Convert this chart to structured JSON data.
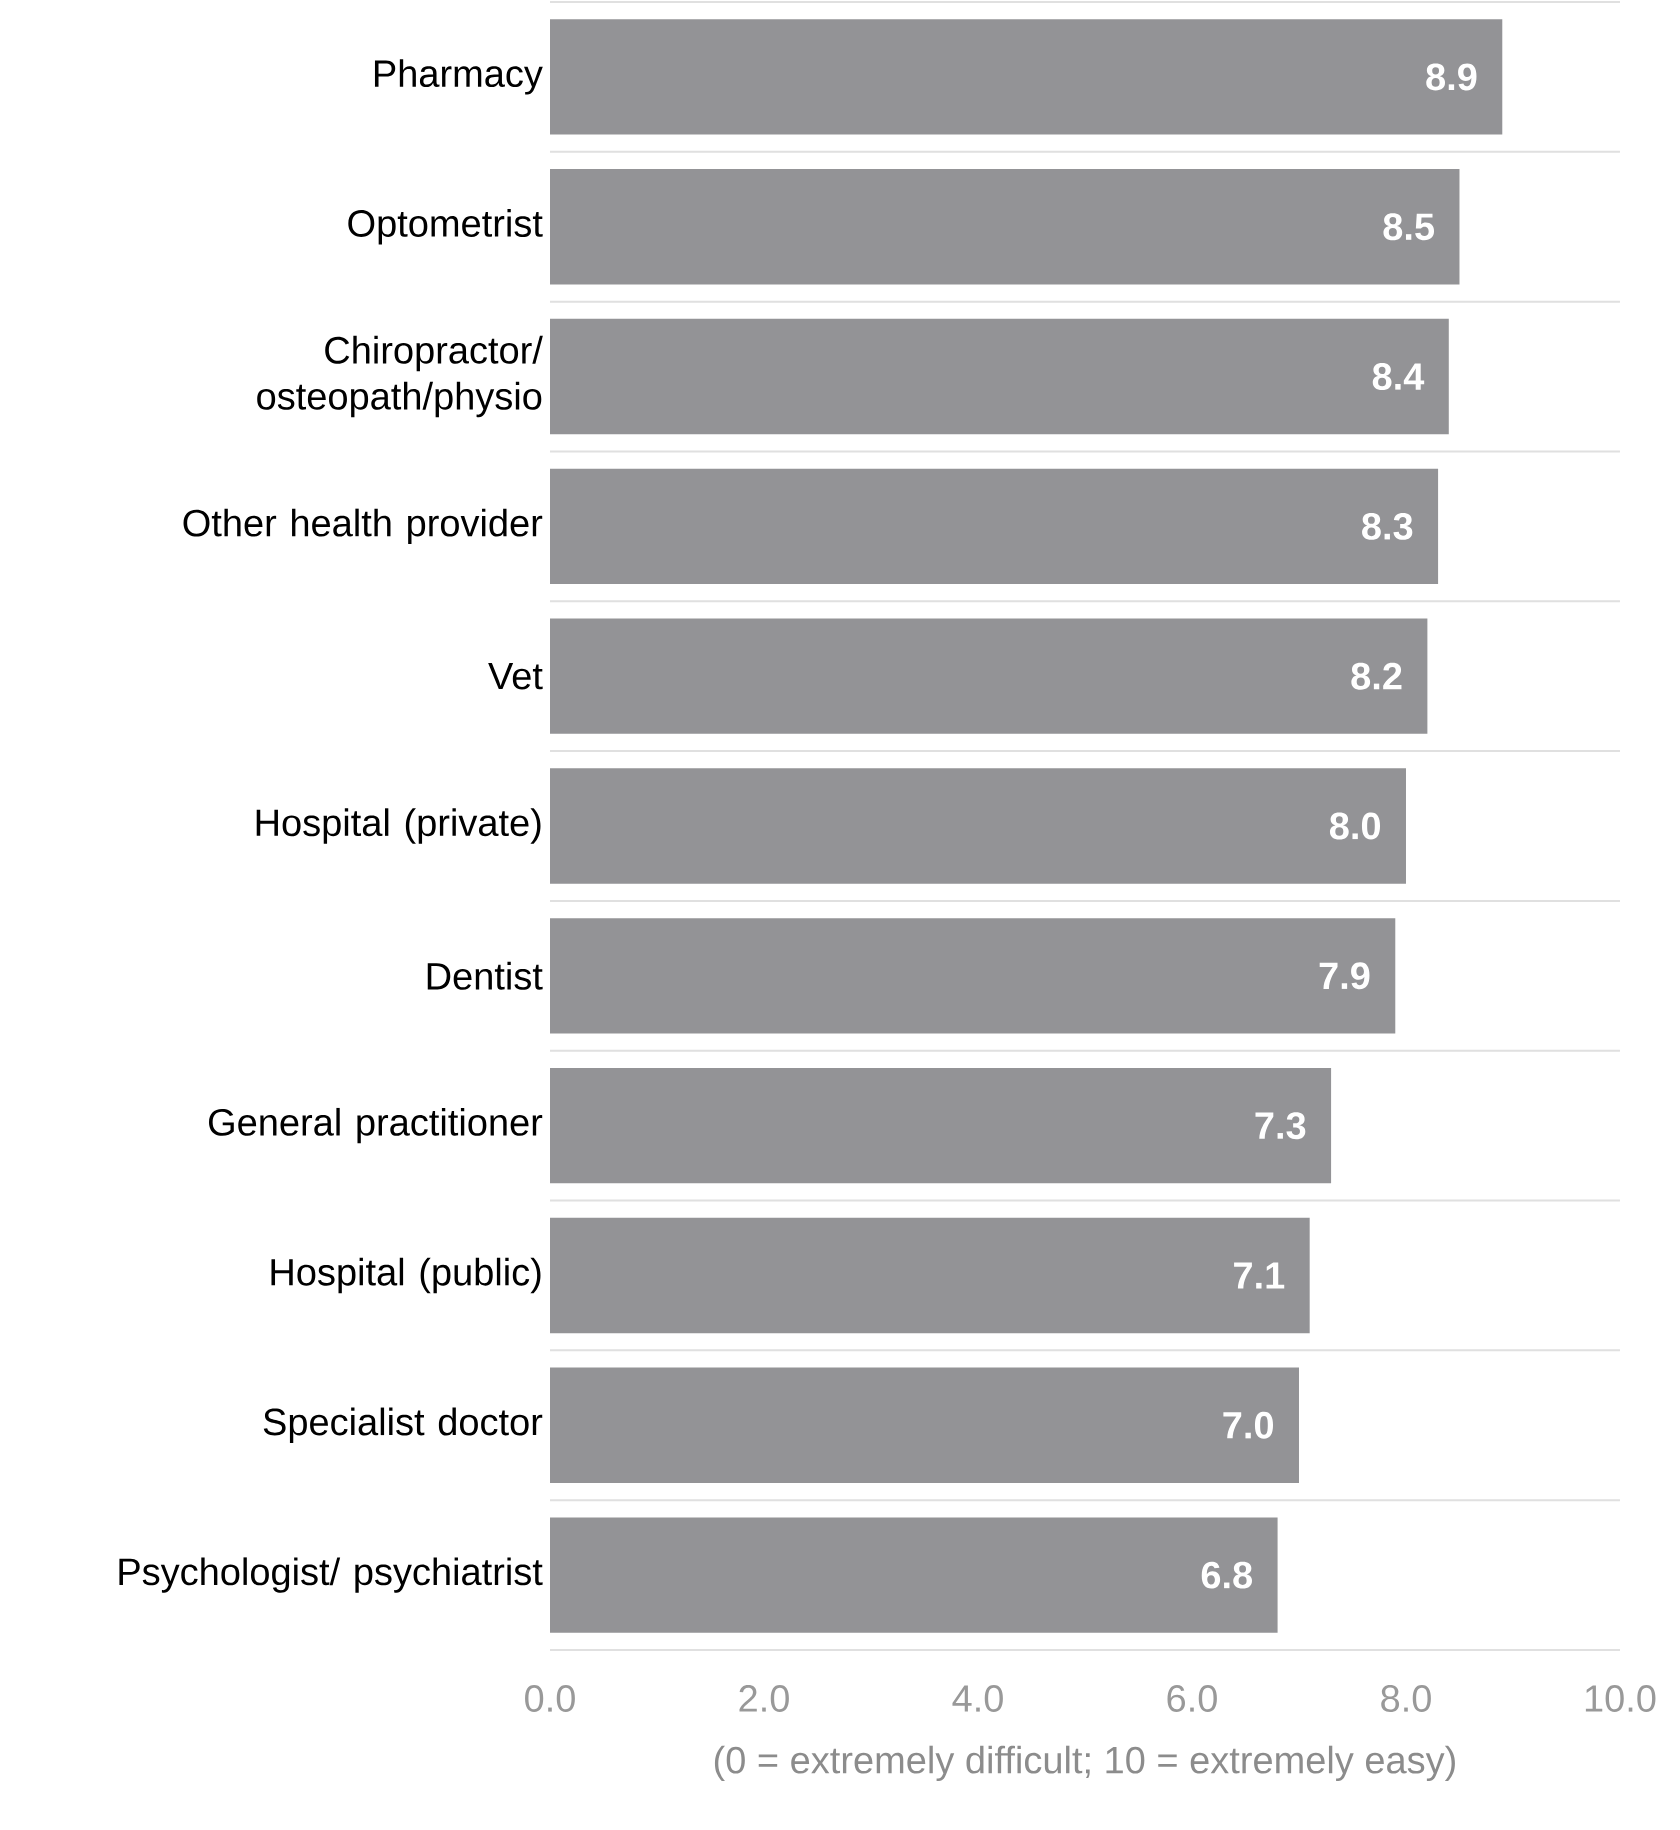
{
  "chart_data": {
    "type": "bar",
    "orientation": "horizontal",
    "categories": [
      "Pharmacy",
      "Optometrist",
      "Chiropractor/ osteopath/physio",
      "Other health provider",
      "Vet",
      "Hospital (private)",
      "Dentist",
      "General practitioner",
      "Hospital (public)",
      "Specialist doctor",
      "Psychologist/ psychiatrist"
    ],
    "values": [
      8.9,
      8.5,
      8.4,
      8.3,
      8.2,
      8.0,
      7.9,
      7.3,
      7.1,
      7.0,
      6.8
    ],
    "value_labels": [
      "8.9",
      "8.5",
      "8.4",
      "8.3",
      "8.2",
      "8.0",
      "7.9",
      "7.3",
      "7.1",
      "7.0",
      "6.8"
    ],
    "color": "#939396",
    "xlim": [
      0,
      10
    ],
    "xticks": [
      {
        "value": 0,
        "label": "0.0"
      },
      {
        "value": 2,
        "label": "2.0"
      },
      {
        "value": 4,
        "label": "4.0"
      },
      {
        "value": 6,
        "label": "6.0"
      },
      {
        "value": 8,
        "label": "8.0"
      },
      {
        "value": 10,
        "label": "10.0"
      }
    ],
    "xlabel": "(0 = extremely difficult; 10 = extremely easy)",
    "grid": "y"
  }
}
